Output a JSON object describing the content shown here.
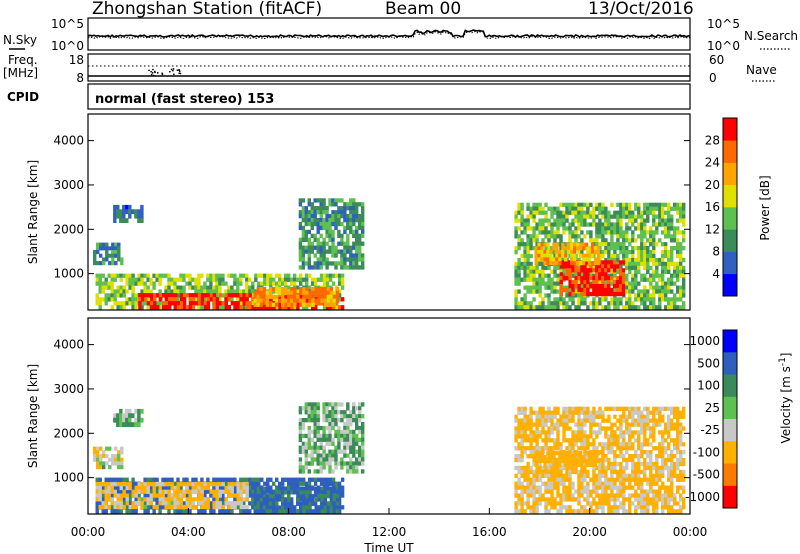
{
  "header": {
    "station": "Zhongshan Station (fitACF)",
    "beam": "Beam 00",
    "date": "13/Oct/2016"
  },
  "strip_noise": {
    "left_label": "N.Sky",
    "left_ticks": [
      "10^5",
      "10^0"
    ],
    "right_ticks": [
      "10^5",
      "10^0"
    ],
    "right_label": "N.Search"
  },
  "strip_freq": {
    "left_label_1": "Freq.",
    "left_label_2": "[MHz]",
    "left_ticks": [
      "18",
      "8"
    ],
    "right_ticks": [
      "60",
      "0"
    ],
    "right_label": "Nave"
  },
  "strip_cpid": {
    "label": "CPID",
    "text": "normal (fast stereo) 153"
  },
  "colors": {
    "scale": [
      "#0000ff",
      "#2e5fbf",
      "#3a8a5a",
      "#5ec050",
      "#c8c8c8",
      "#ffb000",
      "#ff7a00",
      "#ff0000"
    ],
    "power_scale": [
      "#0000ff",
      "#3060c0",
      "#3c8c5a",
      "#5ec050",
      "#e0e000",
      "#ffa500",
      "#ff6a00",
      "#ff0000"
    ]
  },
  "chart_data": [
    {
      "type": "heatmap",
      "name": "power",
      "xlabel": "",
      "ylabel": "Slant Range [km]",
      "xlim": [
        0,
        24
      ],
      "ylim": [
        180,
        4600
      ],
      "yticks": [
        "1000",
        "2000",
        "3000",
        "4000"
      ],
      "colorbar_label": "Power [dB]",
      "colorbar_ticks": [
        "4",
        "8",
        "12",
        "16",
        "20",
        "24",
        "28"
      ],
      "colorbar_range": [
        0,
        30
      ],
      "regions": [
        {
          "x": [
            0.3,
            10.2
          ],
          "y": [
            200,
            1000
          ],
          "value": 14
        },
        {
          "x": [
            2.0,
            10.2
          ],
          "y": [
            200,
            560
          ],
          "value": 27
        },
        {
          "x": [
            6.6,
            10.0
          ],
          "y": [
            260,
            700
          ],
          "value": 22
        },
        {
          "x": [
            1.0,
            2.2
          ],
          "y": [
            2150,
            2550
          ],
          "value": 7
        },
        {
          "x": [
            0.2,
            1.4
          ],
          "y": [
            1200,
            1700
          ],
          "value": 9
        },
        {
          "x": [
            8.4,
            11.0
          ],
          "y": [
            1100,
            2700
          ],
          "value": 10
        },
        {
          "x": [
            17.0,
            23.8
          ],
          "y": [
            200,
            2600
          ],
          "value": 13
        },
        {
          "x": [
            18.8,
            21.4
          ],
          "y": [
            500,
            1300
          ],
          "value": 27
        },
        {
          "x": [
            17.8,
            20.4
          ],
          "y": [
            1200,
            1700
          ],
          "value": 20
        }
      ]
    },
    {
      "type": "heatmap",
      "name": "velocity",
      "xlabel": "Time UT",
      "ylabel": "Slant Range [km]",
      "xlim": [
        0,
        24
      ],
      "ylim": [
        180,
        4600
      ],
      "yticks": [
        "1000",
        "2000",
        "3000",
        "4000"
      ],
      "xticks": [
        "00:00",
        "04:00",
        "08:00",
        "12:00",
        "16:00",
        "20:00",
        "00:00"
      ],
      "colorbar_label": "Velocity [m s^-1]",
      "colorbar_ticks": [
        "1000",
        "500",
        "100",
        "25",
        "-25",
        "-100",
        "-500",
        "-1000"
      ],
      "regions": [
        {
          "x": [
            0.3,
            10.2
          ],
          "y": [
            200,
            1000
          ],
          "value": 150
        },
        {
          "x": [
            6.6,
            10.0
          ],
          "y": [
            200,
            800
          ],
          "value": 120
        },
        {
          "x": [
            0.3,
            6.4
          ],
          "y": [
            300,
            900
          ],
          "value": -110
        },
        {
          "x": [
            1.0,
            2.2
          ],
          "y": [
            2150,
            2550
          ],
          "value": 10
        },
        {
          "x": [
            0.2,
            1.4
          ],
          "y": [
            1200,
            1700
          ],
          "value": -60
        },
        {
          "x": [
            8.4,
            11.0
          ],
          "y": [
            1100,
            2700
          ],
          "value": 10
        },
        {
          "x": [
            17.0,
            23.8
          ],
          "y": [
            200,
            2600
          ],
          "value": -130
        },
        {
          "x": [
            17.8,
            20.4
          ],
          "y": [
            1250,
            1600
          ],
          "value": -200
        }
      ]
    }
  ]
}
